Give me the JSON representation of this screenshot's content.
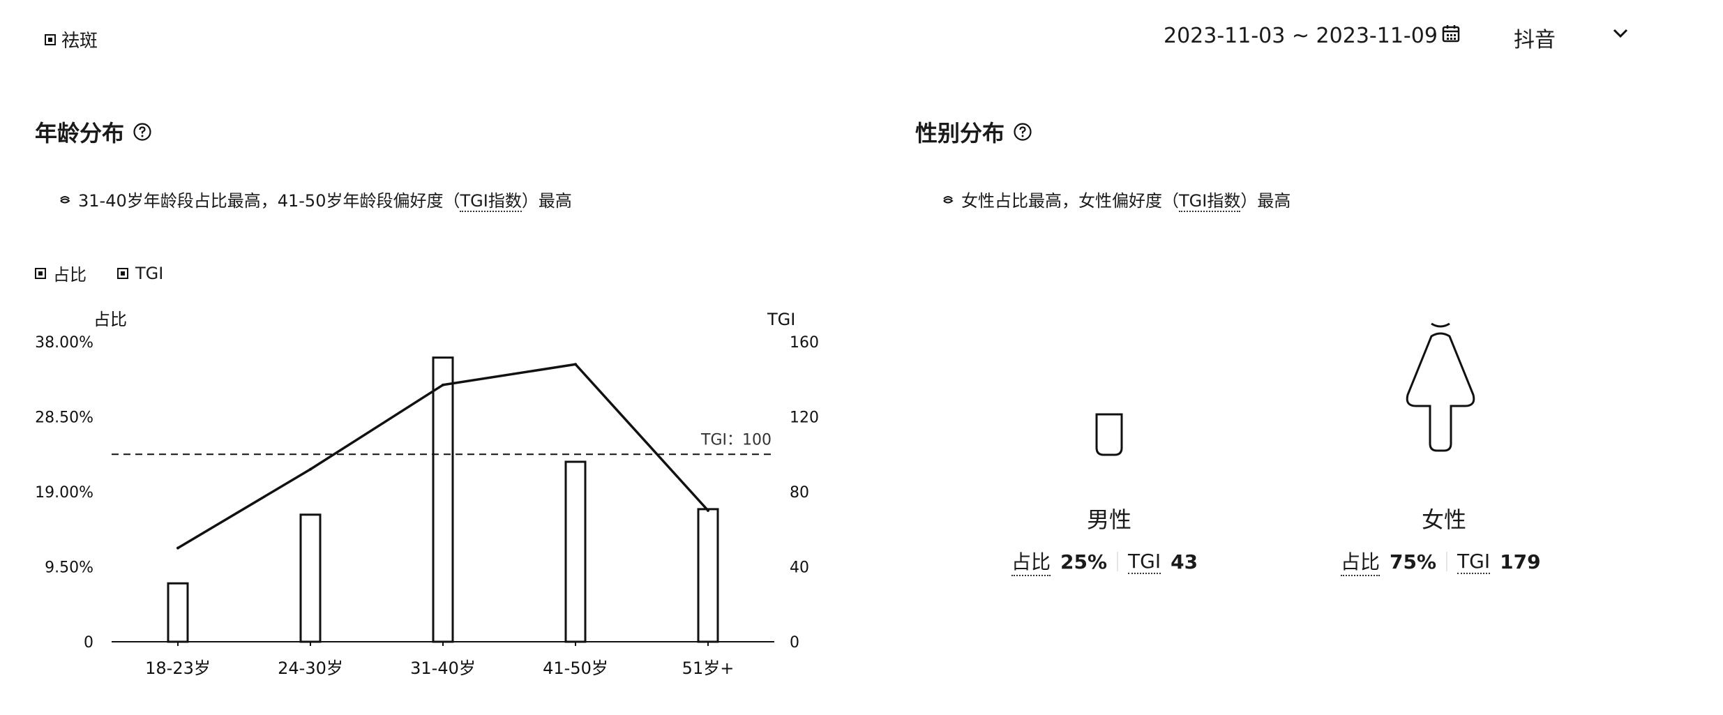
{
  "header": {
    "brand_label": "祛斑",
    "date_range": "2023-11-03 ~ 2023-11-09",
    "platform": "抖音"
  },
  "age_section": {
    "title": "年龄分布",
    "insight_main": "31-40岁年龄段占比最高，41-50岁年龄段偏好度（",
    "insight_term": "TGI指数",
    "insight_end": "）最高",
    "legend": [
      "占比",
      "TGI"
    ]
  },
  "gender_section": {
    "title": "性别分布",
    "insight_main": "女性占比最高，女性偏好度（",
    "insight_term": "TGI指数",
    "insight_end": "）最高",
    "male": {
      "label": "男性",
      "share_label": "占比",
      "share": "25%",
      "tgi_label": "TGI",
      "tgi": "43"
    },
    "female": {
      "label": "女性",
      "share_label": "占比",
      "share": "75%",
      "tgi_label": "TGI",
      "tgi": "179"
    }
  },
  "chart_data": {
    "type": "bar",
    "categories": [
      "18-23岁",
      "24-30岁",
      "31-40岁",
      "41-50岁",
      "51岁+"
    ],
    "series": [
      {
        "name": "占比",
        "type": "bar",
        "axis": "left",
        "values": [
          7.4,
          16.1,
          36.0,
          22.8,
          16.8
        ]
      },
      {
        "name": "TGI",
        "type": "line",
        "axis": "right",
        "values": [
          50,
          92,
          137,
          148,
          70
        ]
      }
    ],
    "ylabel": "占比",
    "y2label": "TGI",
    "ylim": [
      0,
      38
    ],
    "y2lim": [
      0,
      160
    ],
    "yticks": [
      "0",
      "9.50%",
      "19.00%",
      "28.50%",
      "38.00%"
    ],
    "y2ticks": [
      "0",
      "40",
      "80",
      "120",
      "160"
    ],
    "reference_line": {
      "value": 100,
      "label": "TGI：100"
    }
  },
  "colors": {
    "ink": "#111111",
    "text": "#1a1a1a"
  }
}
